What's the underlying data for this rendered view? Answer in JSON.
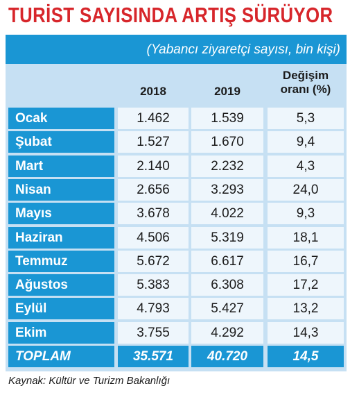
{
  "header": {
    "title": "TURİST SAYISINDA ARTIŞ SÜRÜYOR",
    "subtitle": "(Yabancı ziyaretçi sayısı, bin kişi)"
  },
  "table": {
    "columns": [
      "2018",
      "2019",
      "Değişim oranı (%)"
    ],
    "rows": [
      [
        "Ocak",
        "1.462",
        "1.539",
        "5,3"
      ],
      [
        "Şubat",
        "1.527",
        "1.670",
        "9,4"
      ],
      [
        "Mart",
        "2.140",
        "2.232",
        "4,3"
      ],
      [
        "Nisan",
        "2.656",
        "3.293",
        "24,0"
      ],
      [
        "Mayıs",
        "3.678",
        "4.022",
        "9,3"
      ],
      [
        "Haziran",
        "4.506",
        "5.319",
        "18,1"
      ],
      [
        "Temmuz",
        "5.672",
        "6.617",
        "16,7"
      ],
      [
        "Ağustos",
        "5.383",
        "6.308",
        "17,2"
      ],
      [
        "Eylül",
        "4.793",
        "5.427",
        "13,2"
      ],
      [
        "Ekim",
        "3.755",
        "4.292",
        "14,3"
      ]
    ],
    "total": [
      "TOPLAM",
      "35.571",
      "40.720",
      "14,5"
    ]
  },
  "source": "Kaynak: Kültür ve Turizm Bakanlığı"
}
